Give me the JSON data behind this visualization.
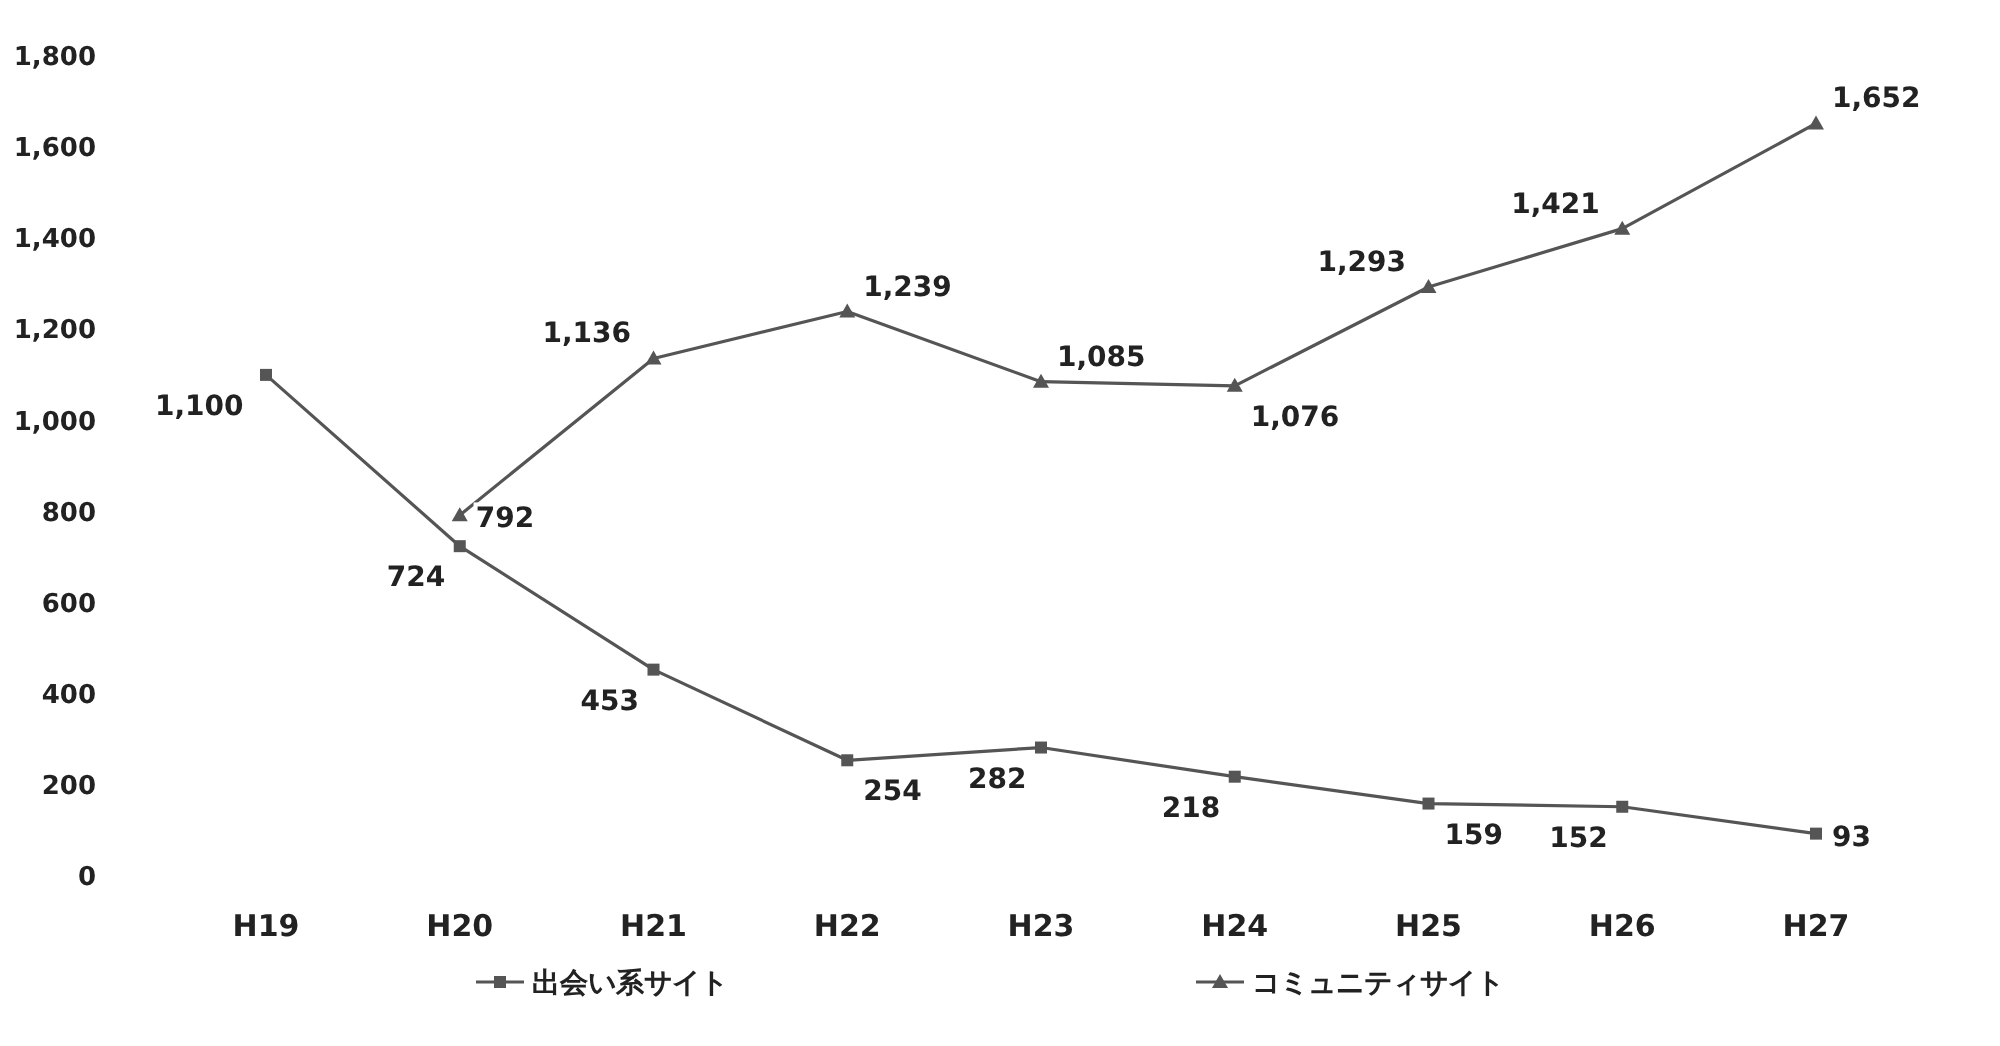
{
  "chart_data": {
    "type": "line",
    "categories": [
      "H19",
      "H20",
      "H21",
      "H22",
      "H23",
      "H24",
      "H25",
      "H26",
      "H27"
    ],
    "series": [
      {
        "name": "出会い系サイト",
        "color": "#555555",
        "marker": "square",
        "values": [
          1100,
          724,
          453,
          254,
          282,
          218,
          159,
          152,
          93
        ],
        "value_labels": [
          "1,100",
          "724",
          "453",
          "254",
          "282",
          "218",
          "159",
          "152",
          "93"
        ]
      },
      {
        "name": "コミュニティサイト",
        "color": "#555555",
        "marker": "triangle",
        "values": [
          null,
          792,
          1136,
          1239,
          1085,
          1076,
          1293,
          1421,
          1652
        ],
        "value_labels": [
          null,
          "792",
          "1,136",
          "1,239",
          "1,085",
          "1,076",
          "1,293",
          "1,421",
          "1,652"
        ]
      }
    ],
    "ylim": [
      0,
      1800
    ],
    "yticks": [
      {
        "value": 0,
        "label": "0"
      },
      {
        "value": 200,
        "label": "200"
      },
      {
        "value": 400,
        "label": "400"
      },
      {
        "value": 600,
        "label": "600"
      },
      {
        "value": 800,
        "label": "800"
      },
      {
        "value": 1000,
        "label": "1,000"
      },
      {
        "value": 1200,
        "label": "1,200"
      },
      {
        "value": 1400,
        "label": "1,400"
      },
      {
        "value": 1600,
        "label": "1,600"
      },
      {
        "value": 1800,
        "label": "1,800"
      }
    ],
    "grid": false,
    "legend": "bottom",
    "line_style": "solid"
  }
}
